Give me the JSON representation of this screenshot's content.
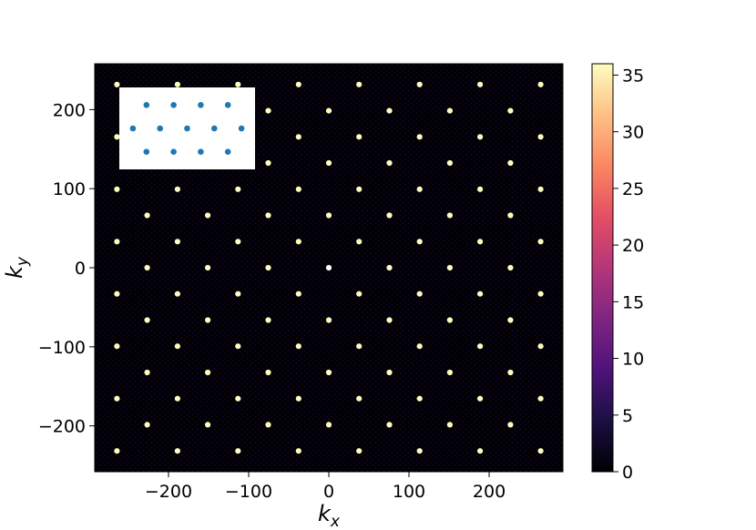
{
  "chart_data": {
    "type": "heatmap",
    "title": "",
    "xlabel": {
      "base": "k",
      "sub": "x"
    },
    "ylabel": {
      "base": "k",
      "sub": "y"
    },
    "xlim": [
      -292,
      292
    ],
    "ylim": [
      -258,
      258
    ],
    "xticks": [
      -200,
      -100,
      0,
      100,
      200
    ],
    "yticks": [
      -200,
      -100,
      0,
      100,
      200
    ],
    "xtick_labels": [
      "−200",
      "−100",
      "0",
      "100",
      "200"
    ],
    "ytick_labels": [
      "−200",
      "−100",
      "0",
      "100",
      "200"
    ],
    "grid": false,
    "colormap": "magma",
    "colorbar": {
      "min": 0,
      "max": 36,
      "ticks": [
        0,
        5,
        10,
        15,
        20,
        25,
        30,
        35
      ],
      "tick_labels": [
        "0",
        "5",
        "10",
        "15",
        "20",
        "25",
        "30",
        "35"
      ]
    },
    "lattice": {
      "description_units": "k-space, hexagonal Bragg peak lattice",
      "a1": [
        75.5,
        0
      ],
      "a2": [
        37.75,
        33.1
      ],
      "peak_intensity": 36,
      "center_peak_intensity": 30,
      "background_level": 0.4
    },
    "inset": {
      "type": "scatter",
      "marker_color": "#1f77b4",
      "rows": [
        {
          "y": 1,
          "x": [
            1,
            2,
            3,
            4
          ]
        },
        {
          "y": 0,
          "x": [
            0.5,
            1.5,
            2.5,
            3.5,
            4.5
          ]
        },
        {
          "y": -1,
          "x": [
            1,
            2,
            3,
            4
          ]
        }
      ],
      "xlim": [
        0,
        5
      ],
      "ylim": [
        -1.75,
        1.75
      ]
    }
  }
}
